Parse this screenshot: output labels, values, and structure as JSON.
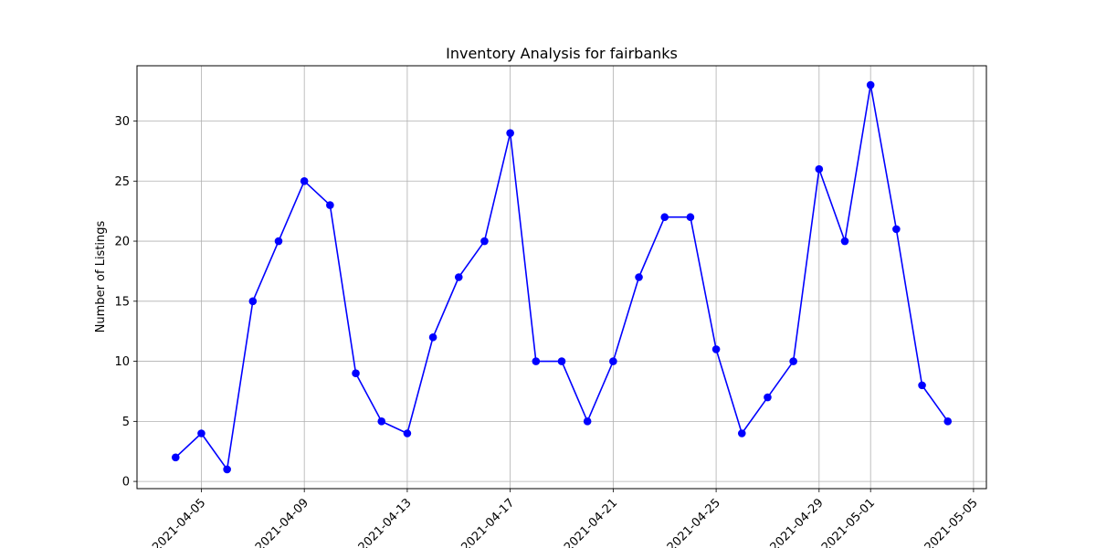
{
  "chart_data": {
    "type": "line",
    "title": "Inventory Analysis for fairbanks",
    "xlabel": "",
    "ylabel": "Number of Listings",
    "x_start_date": "2021-04-04",
    "x": [
      "2021-04-04",
      "2021-04-05",
      "2021-04-06",
      "2021-04-07",
      "2021-04-08",
      "2021-04-09",
      "2021-04-10",
      "2021-04-11",
      "2021-04-12",
      "2021-04-13",
      "2021-04-14",
      "2021-04-15",
      "2021-04-16",
      "2021-04-17",
      "2021-04-18",
      "2021-04-19",
      "2021-04-20",
      "2021-04-21",
      "2021-04-22",
      "2021-04-23",
      "2021-04-24",
      "2021-04-25",
      "2021-04-26",
      "2021-04-27",
      "2021-04-28",
      "2021-04-29",
      "2021-04-30",
      "2021-05-01",
      "2021-05-02",
      "2021-05-03",
      "2021-05-04"
    ],
    "series": [
      {
        "values": [
          2,
          4,
          1,
          15,
          20,
          25,
          23,
          9,
          5,
          4,
          12,
          17,
          20,
          29,
          10,
          10,
          5,
          10,
          17,
          22,
          22,
          11,
          4,
          7,
          10,
          26,
          20,
          33,
          21,
          8,
          5
        ],
        "color": "#0000ff",
        "marker": "circle"
      }
    ],
    "x_ticks": [
      "2021-04-05",
      "2021-04-09",
      "2021-04-13",
      "2021-04-17",
      "2021-04-21",
      "2021-04-25",
      "2021-04-29",
      "2021-05-01",
      "2021-05-05"
    ],
    "y_ticks": [
      0,
      5,
      10,
      15,
      20,
      25,
      30
    ],
    "ylim": [
      -0.6,
      34.6
    ],
    "xlim": [
      "2021-04-02T12:00",
      "2021-05-05T12:00"
    ],
    "grid": true
  }
}
